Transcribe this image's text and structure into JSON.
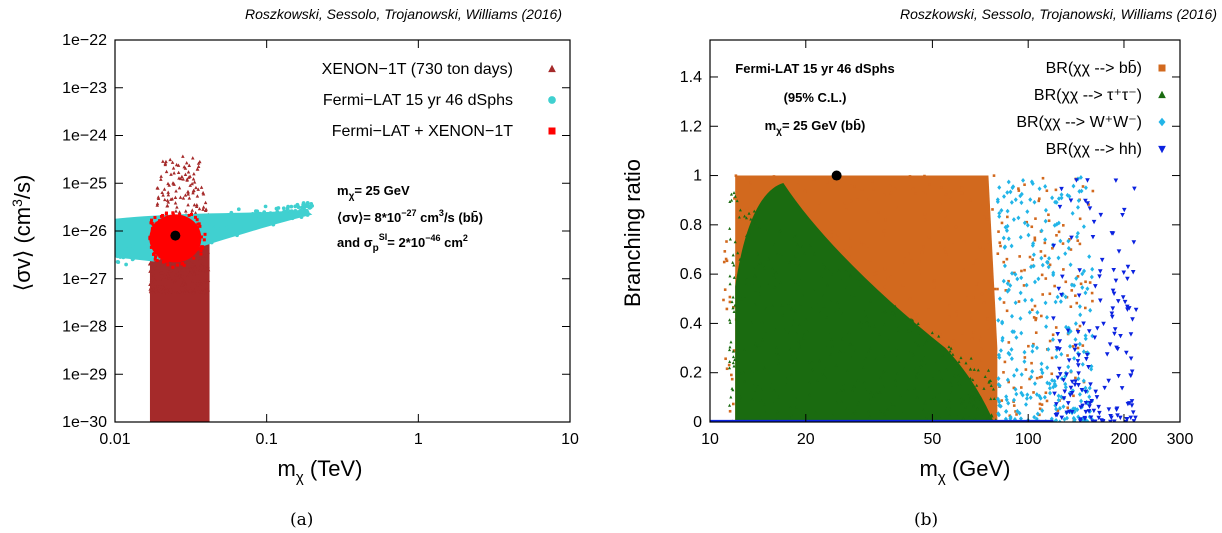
{
  "chart_data": [
    {
      "type": "scatter",
      "panel": "(a)",
      "credit": "Roszkowski, Sessolo, Trojanowski, Williams (2016)",
      "xlabel": "m_χ (TeV)",
      "ylabel": "⟨σv⟩ (cm³/s)",
      "xscale": "log",
      "yscale": "log",
      "xlim": [
        0.01,
        10
      ],
      "ylim": [
        1e-30,
        1e-22
      ],
      "xticks": [
        {
          "v": 0.01,
          "label": "0.01"
        },
        {
          "v": 0.1,
          "label": "0.1"
        },
        {
          "v": 1,
          "label": "1"
        },
        {
          "v": 10,
          "label": "10"
        }
      ],
      "yticks": [
        {
          "v": 1e-30,
          "label": "1e−30"
        },
        {
          "v": 1e-29,
          "label": "1e−29"
        },
        {
          "v": 1e-28,
          "label": "1e−28"
        },
        {
          "v": 1e-27,
          "label": "1e−27"
        },
        {
          "v": 1e-26,
          "label": "1e−26"
        },
        {
          "v": 1e-25,
          "label": "1e−25"
        },
        {
          "v": 1e-24,
          "label": "1e−24"
        },
        {
          "v": 1e-23,
          "label": "1e−23"
        },
        {
          "v": 1e-22,
          "label": "1e−22"
        }
      ],
      "legend_position": "top-right",
      "series": [
        {
          "name": "XENON−1T (730 ton days)",
          "color": "#a52a2a",
          "marker": "triangle",
          "region": {
            "x_min": 0.017,
            "x_max": 0.042,
            "y_min": 1e-30,
            "y_max": 4e-25,
            "note": "scatter band"
          }
        },
        {
          "name": "Fermi−LAT 15 yr 46 dSphs",
          "color": "#40d0d0",
          "marker": "circle",
          "region": {
            "x_min": 0.01,
            "x_max": 0.2,
            "y_min": 2e-27,
            "y_max": 3e-26,
            "note": "scatter band"
          }
        },
        {
          "name": "Fermi−LAT + XENON−1T",
          "color": "#ff0000",
          "marker": "square",
          "region": {
            "x_center": 0.025,
            "y_center": 7e-27,
            "note": "blob"
          }
        }
      ],
      "benchmark_point": {
        "x": 0.025,
        "y": 8e-27,
        "color": "#000000"
      },
      "annotation": [
        "m_χ= 25 GeV",
        "⟨σv⟩= 8*10⁻²⁷ cm³/s (bb̄)",
        "and σ_p^SI= 2*10⁻⁴⁶ cm²"
      ]
    },
    {
      "type": "scatter",
      "panel": "(b)",
      "credit": "Roszkowski, Sessolo, Trojanowski, Williams (2016)",
      "xlabel": "m_χ (GeV)",
      "ylabel": "Branching ratio",
      "xscale": "log",
      "xlim": [
        10,
        300
      ],
      "ylim": [
        0,
        1.55
      ],
      "xticks": [
        {
          "v": 10,
          "label": "10"
        },
        {
          "v": 20,
          "label": "20"
        },
        {
          "v": 50,
          "label": "50"
        },
        {
          "v": 100,
          "label": "100"
        },
        {
          "v": 200,
          "label": "200"
        },
        {
          "v": 300,
          "label": "300"
        }
      ],
      "yticks": [
        {
          "v": 0,
          "label": "0"
        },
        {
          "v": 0.2,
          "label": "0.2"
        },
        {
          "v": 0.4,
          "label": "0.4"
        },
        {
          "v": 0.6,
          "label": "0.6"
        },
        {
          "v": 0.8,
          "label": "0.8"
        },
        {
          "v": 1,
          "label": "1"
        },
        {
          "v": 1.2,
          "label": "1.2"
        },
        {
          "v": 1.4,
          "label": "1.4"
        }
      ],
      "legend_position": "top-right",
      "series": [
        {
          "name": "BR(χχ --> bb̄)",
          "color": "#d2691e",
          "marker": "square",
          "region": {
            "x_min": 11,
            "x_max": 160,
            "y_min": 0,
            "y_max": 1.0,
            "note": "dense scatter"
          }
        },
        {
          "name": "BR(χχ --> τ⁺τ⁻)",
          "color": "#1a6b10",
          "marker": "triangle",
          "region": {
            "x_min": 11,
            "x_max": 80,
            "y_min": 0,
            "y_max": 1.0,
            "note": "dense scatter"
          }
        },
        {
          "name": "BR(χχ --> W⁺W⁻)",
          "color": "#22b5e8",
          "marker": "diamond",
          "region": {
            "x_min": 80,
            "x_max": 160,
            "y_min": 0,
            "y_max": 1.0,
            "note": "sparse scatter"
          }
        },
        {
          "name": "BR(χχ --> hh)",
          "color": "#0b22e0",
          "marker": "inverted-triangle",
          "region": {
            "x_min": 120,
            "x_max": 230,
            "y_min": 0,
            "y_max": 1.0,
            "note": "sparse scatter"
          }
        }
      ],
      "benchmark_point": {
        "x": 25,
        "y": 1.0,
        "color": "#000000"
      },
      "annotation": [
        "Fermi-LAT 15 yr 46 dSphs",
        "(95% C.L.)",
        "m_χ= 25 GeV  (bb̄)"
      ]
    }
  ]
}
